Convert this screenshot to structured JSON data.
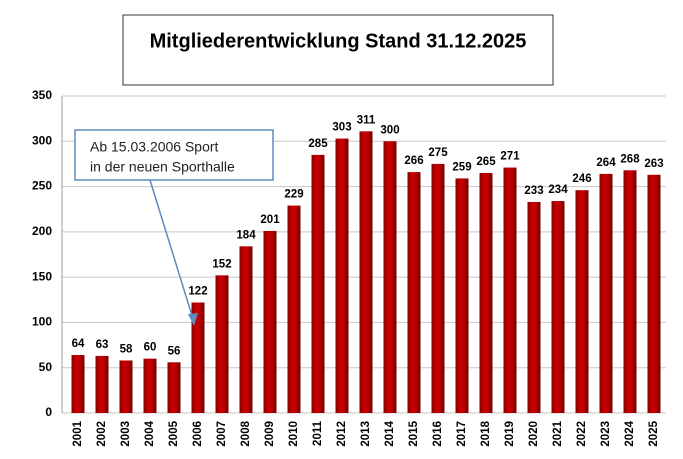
{
  "chart_data": {
    "type": "bar",
    "title": "Mitgliederentwicklung Stand 31.12.2025",
    "annotation": [
      "Ab 15.03.2006 Sport",
      "in der neuen Sporthalle"
    ],
    "categories": [
      "2001",
      "2002",
      "2003",
      "2004",
      "2005",
      "2006",
      "2007",
      "2008",
      "2009",
      "2010",
      "2011",
      "2012",
      "2013",
      "2014",
      "2015",
      "2016",
      "2017",
      "2018",
      "2019",
      "2020",
      "2021",
      "2022",
      "2023",
      "2024",
      "2025"
    ],
    "values": [
      64,
      63,
      58,
      60,
      56,
      122,
      152,
      184,
      201,
      229,
      285,
      303,
      311,
      300,
      266,
      275,
      259,
      265,
      271,
      233,
      234,
      246,
      264,
      268,
      263
    ],
    "color": "#c00000",
    "ylim": [
      0,
      350
    ],
    "yticks": [
      0,
      50,
      100,
      150,
      200,
      250,
      300,
      350
    ],
    "grid": true
  }
}
